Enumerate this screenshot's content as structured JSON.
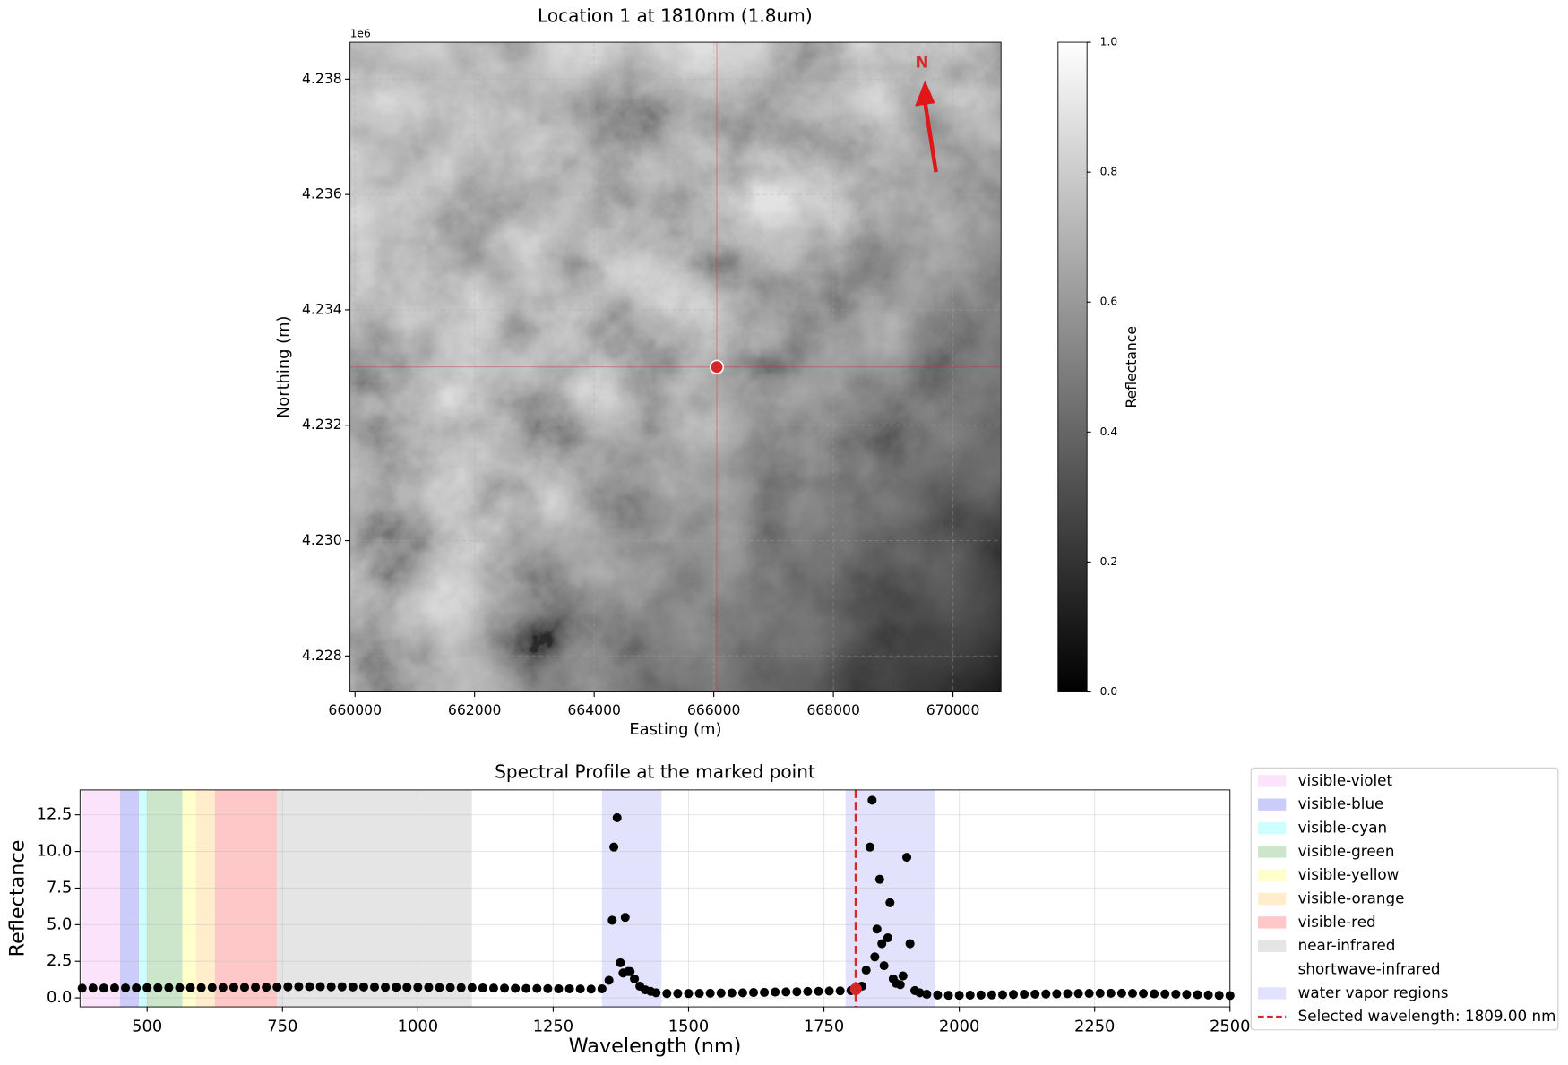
{
  "chart_data": [
    {
      "type": "image",
      "title": "Location 1 at 1810nm (1.8um)",
      "xlabel": "Easting (m)",
      "ylabel": "Northing (m)",
      "y_offset_text": "1e6",
      "xlim": [
        659916,
        670803
      ],
      "ylim": [
        4227376,
        4238641
      ],
      "xticks": [
        660000,
        662000,
        664000,
        666000,
        668000,
        670000
      ],
      "yticks": [
        {
          "value": 4228000,
          "label": "4.228"
        },
        {
          "value": 4230000,
          "label": "4.230"
        },
        {
          "value": 4232000,
          "label": "4.232"
        },
        {
          "value": 4234000,
          "label": "4.234"
        },
        {
          "value": 4236000,
          "label": "4.236"
        },
        {
          "value": 4238000,
          "label": "4.238"
        }
      ],
      "grid": true,
      "marker": {
        "x": 666050,
        "y": 4233010,
        "color": "#d62728"
      },
      "north_label": "N",
      "colorbar": {
        "label": "Reflectance",
        "colormap": "gray",
        "ylim": [
          0,
          1
        ],
        "yticks": [
          {
            "value": 0,
            "label": "0.0"
          },
          {
            "value": 0.2,
            "label": "0.2"
          },
          {
            "value": 0.4,
            "label": "0.4"
          },
          {
            "value": 0.6,
            "label": "0.6"
          },
          {
            "value": 0.8,
            "label": "0.8"
          },
          {
            "value": 1,
            "label": "1.0"
          }
        ]
      }
    },
    {
      "type": "scatter",
      "title": "Spectral Profile at the marked point",
      "xlabel": "Wavelength (nm)",
      "ylabel": "Reflectance",
      "xlim": [
        376,
        2500
      ],
      "ylim": [
        -0.61,
        14.2
      ],
      "xticks": [
        500,
        750,
        1000,
        1250,
        1500,
        1750,
        2000,
        2250,
        2500
      ],
      "yticks": [
        {
          "value": 0,
          "label": "0.0"
        },
        2.5,
        {
          "value": 5,
          "label": "5.0"
        },
        7.5,
        {
          "value": 10,
          "label": "10.0"
        },
        12.5
      ],
      "grid": true,
      "color": "#000000",
      "legend": "outside right",
      "regions": [
        {
          "name": "visible-violet",
          "color": "#fbe4fb",
          "ranges": [
            [
              380,
              450
            ]
          ]
        },
        {
          "name": "visible-blue",
          "color": "#ccccfb",
          "ranges": [
            [
              450,
              485
            ]
          ]
        },
        {
          "name": "visible-cyan",
          "color": "#ccfffe",
          "ranges": [
            [
              485,
              500
            ]
          ]
        },
        {
          "name": "visible-green",
          "color": "#cce6cc",
          "ranges": [
            [
              500,
              565
            ]
          ]
        },
        {
          "name": "visible-yellow",
          "color": "#ffffcc",
          "ranges": [
            [
              565,
              590
            ]
          ]
        },
        {
          "name": "visible-orange",
          "color": "#ffedcc",
          "ranges": [
            [
              590,
              625
            ]
          ]
        },
        {
          "name": "visible-red",
          "color": "#ffc8c8",
          "ranges": [
            [
              625,
              740
            ]
          ]
        },
        {
          "name": "near-infrared",
          "color": "#e5e5e5",
          "ranges": [
            [
              740,
              1100
            ]
          ]
        },
        {
          "name": "shortwave-infrared",
          "color": "#ffffff",
          "ranges": [
            [
              1100,
              2500
            ]
          ]
        },
        {
          "name": "water vapor regions",
          "color": "#e2e2fd",
          "ranges": [
            [
              1340,
              1450
            ],
            [
              1790,
              1955
            ]
          ]
        }
      ],
      "selected": {
        "name": "Selected wavelength: 1809.00 nm",
        "x": 1809,
        "y": 0.6,
        "color": "#d62728"
      },
      "x": [
        380,
        400,
        420,
        440,
        460,
        480,
        500,
        520,
        540,
        560,
        580,
        600,
        620,
        640,
        660,
        680,
        700,
        720,
        740,
        760,
        780,
        800,
        820,
        840,
        860,
        880,
        900,
        920,
        940,
        960,
        980,
        1000,
        1020,
        1040,
        1060,
        1080,
        1100,
        1120,
        1140,
        1160,
        1180,
        1200,
        1220,
        1240,
        1260,
        1280,
        1300,
        1320,
        1340,
        1353,
        1359,
        1362,
        1368,
        1374,
        1379,
        1383,
        1388,
        1392,
        1400,
        1410,
        1420,
        1430,
        1440,
        1460,
        1480,
        1500,
        1520,
        1540,
        1560,
        1580,
        1600,
        1620,
        1640,
        1660,
        1680,
        1700,
        1720,
        1740,
        1760,
        1780,
        1800,
        1820,
        1828,
        1835,
        1839,
        1844,
        1848,
        1853,
        1857,
        1861,
        1868,
        1872,
        1878,
        1883,
        1891,
        1896,
        1903,
        1909,
        1918,
        1927,
        1940,
        1960,
        1980,
        2000,
        2020,
        2040,
        2060,
        2080,
        2100,
        2120,
        2140,
        2160,
        2180,
        2200,
        2220,
        2240,
        2260,
        2280,
        2300,
        2320,
        2340,
        2360,
        2380,
        2400,
        2420,
        2440,
        2460,
        2480,
        2500
      ],
      "values": [
        0.66,
        0.67,
        0.67,
        0.68,
        0.68,
        0.68,
        0.69,
        0.69,
        0.7,
        0.7,
        0.7,
        0.7,
        0.71,
        0.71,
        0.72,
        0.72,
        0.73,
        0.73,
        0.74,
        0.76,
        0.77,
        0.77,
        0.77,
        0.76,
        0.76,
        0.75,
        0.75,
        0.74,
        0.73,
        0.73,
        0.72,
        0.72,
        0.72,
        0.71,
        0.71,
        0.7,
        0.7,
        0.68,
        0.67,
        0.66,
        0.65,
        0.64,
        0.64,
        0.63,
        0.62,
        0.62,
        0.61,
        0.6,
        0.62,
        1.2,
        5.3,
        10.3,
        12.3,
        2.4,
        1.7,
        5.5,
        1.8,
        1.8,
        1.3,
        0.8,
        0.55,
        0.45,
        0.35,
        0.3,
        0.3,
        0.3,
        0.31,
        0.32,
        0.33,
        0.34,
        0.35,
        0.37,
        0.38,
        0.4,
        0.41,
        0.42,
        0.44,
        0.45,
        0.47,
        0.48,
        0.5,
        0.8,
        1.9,
        10.3,
        13.5,
        2.8,
        4.7,
        8.1,
        3.7,
        2.2,
        4.1,
        6.5,
        1.3,
        1.0,
        0.9,
        1.5,
        9.6,
        3.7,
        0.5,
        0.35,
        0.25,
        0.2,
        0.18,
        0.18,
        0.19,
        0.2,
        0.21,
        0.22,
        0.24,
        0.25,
        0.26,
        0.27,
        0.28,
        0.29,
        0.3,
        0.31,
        0.32,
        0.32,
        0.32,
        0.31,
        0.3,
        0.28,
        0.27,
        0.26,
        0.24,
        0.22,
        0.2,
        0.18,
        0.16
      ]
    }
  ]
}
